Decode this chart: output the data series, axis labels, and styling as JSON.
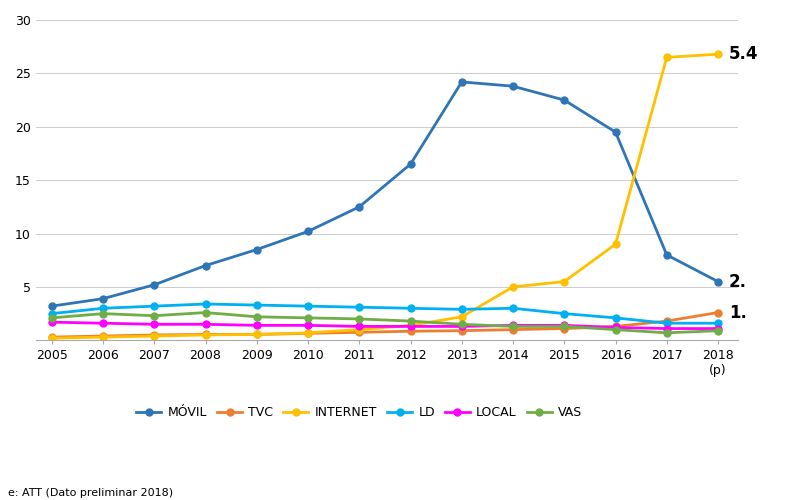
{
  "years": [
    2005,
    2006,
    2007,
    2008,
    2009,
    2010,
    2011,
    2012,
    2013,
    2014,
    2015,
    2016,
    2017,
    2018
  ],
  "movil": [
    3.2,
    3.9,
    5.2,
    7.0,
    8.5,
    10.2,
    12.5,
    16.5,
    24.2,
    23.8,
    22.5,
    19.5,
    8.0,
    5.5
  ],
  "tvc": [
    0.3,
    0.4,
    0.5,
    0.55,
    0.55,
    0.65,
    0.75,
    0.85,
    0.9,
    1.0,
    1.1,
    1.3,
    1.8,
    2.6
  ],
  "internet": [
    0.2,
    0.3,
    0.4,
    0.5,
    0.55,
    0.7,
    1.0,
    1.4,
    2.2,
    5.0,
    5.5,
    9.0,
    26.5,
    26.8
  ],
  "ld": [
    2.5,
    3.0,
    3.2,
    3.4,
    3.3,
    3.2,
    3.1,
    3.0,
    2.9,
    3.0,
    2.5,
    2.1,
    1.6,
    1.6
  ],
  "local": [
    1.7,
    1.6,
    1.5,
    1.5,
    1.4,
    1.4,
    1.3,
    1.3,
    1.3,
    1.4,
    1.4,
    1.2,
    1.1,
    1.1
  ],
  "vas": [
    2.1,
    2.5,
    2.3,
    2.6,
    2.2,
    2.1,
    2.0,
    1.8,
    1.5,
    1.3,
    1.3,
    1.0,
    0.7,
    0.9
  ],
  "colors": {
    "movil": "#2E75B6",
    "tvc": "#ED7D31",
    "internet": "#FFC000",
    "ld": "#00B0F0",
    "local": "#FF00FF",
    "vas": "#70AD47"
  },
  "legend_labels": [
    "MÓVIL",
    "TVC",
    "INTERNET",
    "LD",
    "LOCAL",
    "VAS"
  ],
  "annotation_internet": "5.4",
  "annotation_movil": "2.",
  "annotation_tvc": "1.",
  "source_text": "e: ATT (Dato preliminar 2018)",
  "ylim": [
    0,
    30
  ],
  "ytick_vals": [
    0,
    5,
    10,
    15,
    20,
    25,
    30
  ],
  "background_color": "#FFFFFF",
  "plot_left_crop": true,
  "figsize": [
    8.0,
    5.0
  ],
  "dpi": 100
}
